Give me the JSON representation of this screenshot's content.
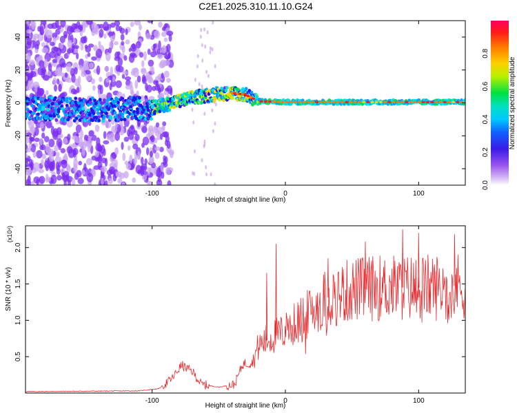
{
  "title": "C2E1.2025.310.11.10.G24",
  "colors": {
    "snr_line": "#e8262a",
    "axis": "#000000",
    "background": "#ffffff"
  },
  "chart_data": [
    {
      "type": "heatmap",
      "name": "spectrogram",
      "xlabel": "Height of straight line (km)",
      "ylabel": "Frequency (Hz)",
      "xlim": [
        -195,
        135
      ],
      "ylim": [
        -50,
        50
      ],
      "x_ticks": [
        -100,
        0,
        100
      ],
      "x_tick_labels": [
        "-100",
        "0",
        "100"
      ],
      "y_ticks": [
        -40,
        -20,
        0,
        20,
        40
      ],
      "y_tick_labels": [
        "-40",
        "-20",
        "0",
        "20",
        "40"
      ],
      "colorbar": {
        "label": "Normalized spectral amplitude",
        "range": [
          0,
          1
        ],
        "ticks": [
          0.0,
          0.2,
          0.4,
          0.6,
          0.8
        ],
        "tick_labels": [
          "0.0",
          "0.2",
          "0.4",
          "0.6",
          "0.8"
        ],
        "colormap": [
          "#ffffff",
          "#c9a7f0",
          "#7a2cf0",
          "#1a1ae6",
          "#00a0ff",
          "#00e0e0",
          "#00e040",
          "#c8f000",
          "#ffd000",
          "#ff7a00",
          "#ff1a1a",
          "#ff0060"
        ]
      },
      "ridge": [
        {
          "x": -195,
          "y": -3
        },
        {
          "x": -160,
          "y": -4
        },
        {
          "x": -130,
          "y": -4
        },
        {
          "x": -100,
          "y": -3
        },
        {
          "x": -85,
          "y": 0
        },
        {
          "x": -70,
          "y": 3
        },
        {
          "x": -55,
          "y": 5
        },
        {
          "x": -40,
          "y": 6
        },
        {
          "x": -30,
          "y": 5
        },
        {
          "x": -20,
          "y": 1
        },
        {
          "x": 0,
          "y": 0.5
        },
        {
          "x": 135,
          "y": 0.5
        }
      ]
    },
    {
      "type": "line",
      "name": "snr",
      "xlabel": "Height of straight line (km)",
      "ylabel": "SNR (10 * v/v)",
      "y_scale_label": "(x10⁴)",
      "xlim": [
        -195,
        135
      ],
      "ylim": [
        0,
        2.3
      ],
      "x_ticks": [
        -100,
        0,
        100
      ],
      "x_tick_labels": [
        "-100",
        "0",
        "100"
      ],
      "y_ticks": [
        0.5,
        1.0,
        1.5,
        2.0
      ],
      "y_tick_labels": [
        "0.5",
        "1.0",
        "1.5",
        "2.0"
      ],
      "envelope": [
        {
          "x": -195,
          "y": 0.02
        },
        {
          "x": -110,
          "y": 0.03
        },
        {
          "x": -95,
          "y": 0.06
        },
        {
          "x": -85,
          "y": 0.2
        },
        {
          "x": -78,
          "y": 0.38
        },
        {
          "x": -70,
          "y": 0.3
        },
        {
          "x": -63,
          "y": 0.12
        },
        {
          "x": -50,
          "y": 0.08
        },
        {
          "x": -38,
          "y": 0.12
        },
        {
          "x": -32,
          "y": 0.4
        },
        {
          "x": -25,
          "y": 0.42
        },
        {
          "x": -20,
          "y": 0.65
        },
        {
          "x": -12,
          "y": 0.75
        },
        {
          "x": 0,
          "y": 0.85
        },
        {
          "x": 15,
          "y": 1.05
        },
        {
          "x": 30,
          "y": 1.3
        },
        {
          "x": 50,
          "y": 1.42
        },
        {
          "x": 75,
          "y": 1.45
        },
        {
          "x": 100,
          "y": 1.45
        },
        {
          "x": 135,
          "y": 1.48
        }
      ],
      "spikes": [
        {
          "x": -14,
          "y": 1.65
        },
        {
          "x": -7,
          "y": 2.05
        },
        {
          "x": 32,
          "y": 1.85
        },
        {
          "x": 60,
          "y": 2.08
        },
        {
          "x": 88,
          "y": 2.25
        },
        {
          "x": 100,
          "y": 2.2
        },
        {
          "x": 127,
          "y": 2.18
        }
      ]
    }
  ]
}
